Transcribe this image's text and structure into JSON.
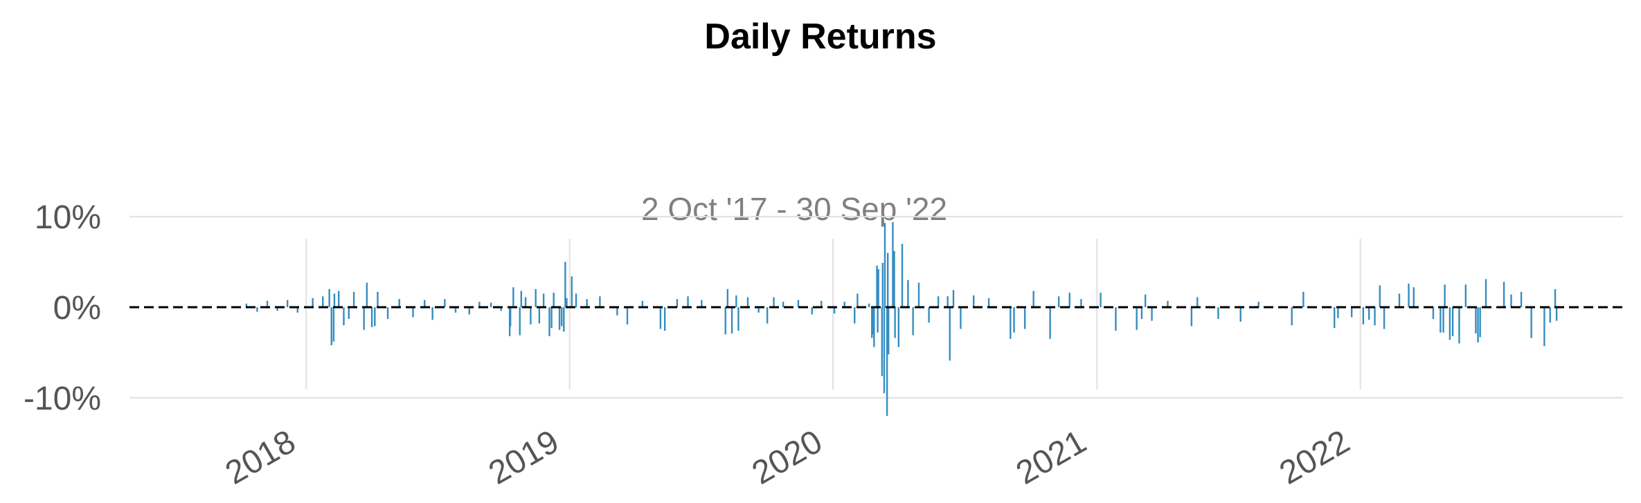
{
  "chart_data": {
    "type": "bar",
    "title": "Daily Returns",
    "subtitle": "2 Oct '17 - 30 Sep '22",
    "xlabel": "",
    "ylabel": "",
    "x_range": [
      "2017-10-02",
      "2022-09-30"
    ],
    "xlim": [
      "2017-05-01",
      "2022-12-31"
    ],
    "ylim": [
      -0.11,
      0.11
    ],
    "y_ticks": [
      {
        "value": 0.1,
        "label": "10%"
      },
      {
        "value": 0.0,
        "label": "0%"
      },
      {
        "value": -0.1,
        "label": "-10%"
      }
    ],
    "x_ticks": [
      {
        "date": "2018-01-01",
        "label": "2018"
      },
      {
        "date": "2019-01-01",
        "label": "2019"
      },
      {
        "date": "2020-01-01",
        "label": "2020"
      },
      {
        "date": "2021-01-01",
        "label": "2021"
      },
      {
        "date": "2022-01-01",
        "label": "2022"
      }
    ],
    "grid": true,
    "legend": "none",
    "zero_line": {
      "y": 0,
      "style": "dashed",
      "color": "#000000"
    },
    "colors": {
      "series": "#348dc1",
      "grid": "#e0e0e0",
      "zero": "#000000"
    },
    "series": [
      {
        "color": "#348dc1",
        "points": [
          [
            "2017-10-10",
            0.004
          ],
          [
            "2017-10-25",
            -0.005
          ],
          [
            "2017-11-08",
            0.007
          ],
          [
            "2017-11-22",
            -0.004
          ],
          [
            "2017-12-06",
            0.008
          ],
          [
            "2017-12-20",
            -0.006
          ],
          [
            "2018-01-10",
            0.01
          ],
          [
            "2018-01-24",
            0.012
          ],
          [
            "2018-02-02",
            0.02
          ],
          [
            "2018-02-05",
            -0.042
          ],
          [
            "2018-02-08",
            -0.038
          ],
          [
            "2018-02-09",
            0.015
          ],
          [
            "2018-02-15",
            0.018
          ],
          [
            "2018-02-22",
            -0.02
          ],
          [
            "2018-03-01",
            -0.013
          ],
          [
            "2018-03-08",
            0.017
          ],
          [
            "2018-03-22",
            -0.025
          ],
          [
            "2018-03-26",
            0.027
          ],
          [
            "2018-04-02",
            -0.022
          ],
          [
            "2018-04-06",
            -0.021
          ],
          [
            "2018-04-10",
            0.017
          ],
          [
            "2018-04-24",
            -0.013
          ],
          [
            "2018-05-10",
            0.009
          ],
          [
            "2018-05-29",
            -0.011
          ],
          [
            "2018-06-14",
            0.008
          ],
          [
            "2018-06-25",
            -0.014
          ],
          [
            "2018-07-12",
            0.009
          ],
          [
            "2018-07-27",
            -0.006
          ],
          [
            "2018-08-15",
            -0.008
          ],
          [
            "2018-08-29",
            0.006
          ],
          [
            "2018-09-14",
            0.005
          ],
          [
            "2018-09-28",
            -0.004
          ],
          [
            "2018-10-10",
            -0.032
          ],
          [
            "2018-10-11",
            -0.021
          ],
          [
            "2018-10-15",
            0.022
          ],
          [
            "2018-10-24",
            -0.031
          ],
          [
            "2018-10-26",
            0.018
          ],
          [
            "2018-11-01",
            0.011
          ],
          [
            "2018-11-08",
            -0.019
          ],
          [
            "2018-11-15",
            0.02
          ],
          [
            "2018-11-20",
            -0.018
          ],
          [
            "2018-11-26",
            0.015
          ],
          [
            "2018-12-04",
            -0.032
          ],
          [
            "2018-12-07",
            -0.023
          ],
          [
            "2018-12-10",
            0.016
          ],
          [
            "2018-12-18",
            -0.025
          ],
          [
            "2018-12-21",
            -0.021
          ],
          [
            "2018-12-24",
            -0.027
          ],
          [
            "2018-12-26",
            0.05
          ],
          [
            "2018-12-28",
            0.01
          ],
          [
            "2019-01-04",
            0.034
          ],
          [
            "2019-01-10",
            0.015
          ],
          [
            "2019-01-25",
            0.009
          ],
          [
            "2019-02-12",
            0.012
          ],
          [
            "2019-03-08",
            -0.009
          ],
          [
            "2019-03-22",
            -0.019
          ],
          [
            "2019-04-12",
            0.007
          ],
          [
            "2019-05-07",
            -0.024
          ],
          [
            "2019-05-13",
            -0.026
          ],
          [
            "2019-05-30",
            0.009
          ],
          [
            "2019-06-14",
            0.012
          ],
          [
            "2019-07-03",
            0.008
          ],
          [
            "2019-08-05",
            -0.03
          ],
          [
            "2019-08-08",
            0.02
          ],
          [
            "2019-08-14",
            -0.029
          ],
          [
            "2019-08-20",
            0.013
          ],
          [
            "2019-08-23",
            -0.026
          ],
          [
            "2019-09-05",
            0.011
          ],
          [
            "2019-09-20",
            -0.006
          ],
          [
            "2019-10-02",
            -0.018
          ],
          [
            "2019-10-11",
            0.011
          ],
          [
            "2019-10-24",
            0.006
          ],
          [
            "2019-11-14",
            0.008
          ],
          [
            "2019-12-03",
            -0.008
          ],
          [
            "2019-12-16",
            0.007
          ],
          [
            "2020-01-03",
            -0.007
          ],
          [
            "2020-01-17",
            0.006
          ],
          [
            "2020-01-31",
            -0.018
          ],
          [
            "2020-02-04",
            0.015
          ],
          [
            "2020-02-20",
            0.004
          ],
          [
            "2020-02-24",
            -0.034
          ],
          [
            "2020-02-25",
            -0.03
          ],
          [
            "2020-02-27",
            -0.044
          ],
          [
            "2020-03-02",
            0.046
          ],
          [
            "2020-03-03",
            -0.028
          ],
          [
            "2020-03-04",
            0.042
          ],
          [
            "2020-03-09",
            -0.076
          ],
          [
            "2020-03-10",
            0.049
          ],
          [
            "2020-03-12",
            -0.095
          ],
          [
            "2020-03-13",
            0.093
          ],
          [
            "2020-03-16",
            -0.12
          ],
          [
            "2020-03-17",
            0.06
          ],
          [
            "2020-03-18",
            -0.052
          ],
          [
            "2020-03-24",
            0.094
          ],
          [
            "2020-03-26",
            0.062
          ],
          [
            "2020-03-27",
            -0.034
          ],
          [
            "2020-04-01",
            -0.044
          ],
          [
            "2020-04-06",
            0.07
          ],
          [
            "2020-04-14",
            0.03
          ],
          [
            "2020-04-21",
            -0.031
          ],
          [
            "2020-04-29",
            0.027
          ],
          [
            "2020-05-13",
            -0.017
          ],
          [
            "2020-05-26",
            0.012
          ],
          [
            "2020-06-08",
            0.012
          ],
          [
            "2020-06-11",
            -0.059
          ],
          [
            "2020-06-16",
            0.019
          ],
          [
            "2020-06-26",
            -0.024
          ],
          [
            "2020-07-14",
            0.013
          ],
          [
            "2020-08-04",
            0.01
          ],
          [
            "2020-09-03",
            -0.035
          ],
          [
            "2020-09-08",
            -0.028
          ],
          [
            "2020-09-23",
            -0.024
          ],
          [
            "2020-10-05",
            0.018
          ],
          [
            "2020-10-28",
            -0.035
          ],
          [
            "2020-11-09",
            0.012
          ],
          [
            "2020-11-24",
            0.016
          ],
          [
            "2020-12-10",
            0.009
          ],
          [
            "2021-01-06",
            0.016
          ],
          [
            "2021-01-27",
            -0.026
          ],
          [
            "2021-02-25",
            -0.025
          ],
          [
            "2021-03-04",
            -0.013
          ],
          [
            "2021-03-09",
            0.014
          ],
          [
            "2021-03-18",
            -0.015
          ],
          [
            "2021-04-09",
            0.007
          ],
          [
            "2021-05-12",
            -0.021
          ],
          [
            "2021-05-20",
            0.011
          ],
          [
            "2021-06-18",
            -0.013
          ],
          [
            "2021-07-19",
            -0.016
          ],
          [
            "2021-08-13",
            0.006
          ],
          [
            "2021-09-28",
            -0.02
          ],
          [
            "2021-10-14",
            0.017
          ],
          [
            "2021-11-26",
            -0.023
          ],
          [
            "2021-12-01",
            -0.012
          ],
          [
            "2021-12-20",
            -0.011
          ],
          [
            "2022-01-05",
            -0.019
          ],
          [
            "2022-01-13",
            -0.014
          ],
          [
            "2022-01-21",
            -0.02
          ],
          [
            "2022-01-28",
            0.024
          ],
          [
            "2022-02-03",
            -0.024
          ],
          [
            "2022-02-24",
            0.015
          ],
          [
            "2022-03-09",
            0.026
          ],
          [
            "2022-03-16",
            0.022
          ],
          [
            "2022-04-12",
            -0.013
          ],
          [
            "2022-04-22",
            -0.028
          ],
          [
            "2022-04-26",
            -0.028
          ],
          [
            "2022-04-28",
            0.025
          ],
          [
            "2022-05-05",
            -0.036
          ],
          [
            "2022-05-09",
            -0.032
          ],
          [
            "2022-05-18",
            -0.04
          ],
          [
            "2022-05-27",
            0.025
          ],
          [
            "2022-06-10",
            -0.029
          ],
          [
            "2022-06-13",
            -0.039
          ],
          [
            "2022-06-16",
            -0.033
          ],
          [
            "2022-06-24",
            0.031
          ],
          [
            "2022-07-19",
            0.028
          ],
          [
            "2022-07-29",
            0.014
          ],
          [
            "2022-08-12",
            0.017
          ],
          [
            "2022-08-26",
            -0.034
          ],
          [
            "2022-09-13",
            -0.043
          ],
          [
            "2022-09-21",
            -0.017
          ],
          [
            "2022-09-28",
            0.02
          ],
          [
            "2022-09-30",
            -0.015
          ]
        ]
      }
    ]
  }
}
